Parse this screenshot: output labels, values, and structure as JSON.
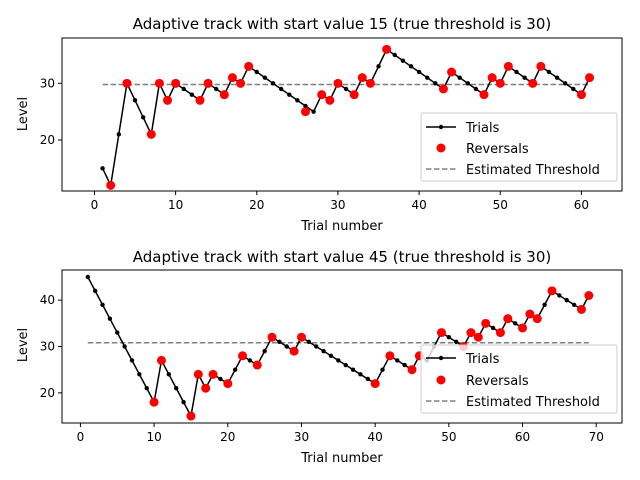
{
  "chart_data": [
    {
      "type": "line",
      "title": "Adaptive track with start value 15 (true threshold is 30)",
      "xlabel": "Trial number",
      "ylabel": "Level",
      "xlim": [
        -4.0,
        65.0
      ],
      "ylim": [
        11.0,
        38.0
      ],
      "xticks": [
        0,
        10,
        20,
        30,
        40,
        50,
        60
      ],
      "yticks": [
        20,
        30
      ],
      "grid": false,
      "legend_position": "lower right",
      "threshold": 29.8,
      "threshold_x": [
        1,
        61
      ],
      "colors": {
        "trials": "#000000",
        "reversals": "#ff0000",
        "threshold": "#808080"
      },
      "series": [
        {
          "name": "Trials",
          "x": [
            1,
            2,
            3,
            4,
            5,
            6,
            7,
            8,
            9,
            10,
            11,
            12,
            13,
            14,
            15,
            16,
            17,
            18,
            19,
            20,
            21,
            22,
            23,
            24,
            25,
            26,
            27,
            28,
            29,
            30,
            31,
            32,
            33,
            34,
            35,
            36,
            37,
            38,
            39,
            40,
            41,
            42,
            43,
            44,
            45,
            46,
            47,
            48,
            49,
            50,
            51,
            52,
            53,
            54,
            55,
            56,
            57,
            58,
            59,
            60,
            61
          ],
          "y": [
            15,
            12,
            21,
            30,
            27,
            24,
            21,
            30,
            27,
            30,
            29,
            28,
            27,
            30,
            29,
            28,
            31,
            30,
            33,
            32,
            31,
            30,
            29,
            28,
            27,
            26,
            25,
            28,
            27,
            30,
            29,
            28,
            31,
            30,
            33,
            36,
            35,
            34,
            33,
            32,
            31,
            30,
            29,
            32,
            31,
            30,
            29,
            28,
            31,
            30,
            33,
            32,
            31,
            30,
            33,
            32,
            31,
            30,
            29,
            28,
            31
          ]
        },
        {
          "name": "Reversals",
          "x": [
            2,
            4,
            7,
            8,
            9,
            10,
            13,
            14,
            16,
            17,
            18,
            19,
            26,
            28,
            29,
            30,
            32,
            33,
            34,
            36,
            43,
            44,
            48,
            49,
            50,
            51,
            54,
            55,
            60,
            61
          ],
          "y": [
            12,
            30,
            21,
            30,
            27,
            30,
            27,
            30,
            28,
            31,
            30,
            33,
            25,
            28,
            27,
            30,
            28,
            31,
            30,
            36,
            29,
            32,
            28,
            31,
            30,
            33,
            30,
            33,
            28,
            31
          ]
        },
        {
          "name": "Estimated Threshold",
          "x": [
            1,
            61
          ],
          "y": [
            29.8,
            29.8
          ]
        }
      ]
    },
    {
      "type": "line",
      "title": "Adaptive track with start value 45 (true threshold is 30)",
      "xlabel": "Trial number",
      "ylabel": "Level",
      "xlim": [
        -2.5,
        73.5
      ],
      "ylim": [
        13.5,
        46.5
      ],
      "xticks": [
        0,
        10,
        20,
        30,
        40,
        50,
        60,
        70
      ],
      "yticks": [
        20,
        30,
        40
      ],
      "grid": false,
      "legend_position": "lower right",
      "threshold": 30.8,
      "threshold_x": [
        1,
        69
      ],
      "colors": {
        "trials": "#000000",
        "reversals": "#ff0000",
        "threshold": "#808080"
      },
      "series": [
        {
          "name": "Trials",
          "x": [
            1,
            2,
            3,
            4,
            5,
            6,
            7,
            8,
            9,
            10,
            11,
            12,
            13,
            14,
            15,
            16,
            17,
            18,
            19,
            20,
            21,
            22,
            23,
            24,
            25,
            26,
            27,
            28,
            29,
            30,
            31,
            32,
            33,
            34,
            35,
            36,
            37,
            38,
            39,
            40,
            41,
            42,
            43,
            44,
            45,
            46,
            47,
            48,
            49,
            50,
            51,
            52,
            53,
            54,
            55,
            56,
            57,
            58,
            59,
            60,
            61,
            62,
            63,
            64,
            65,
            66,
            67,
            68,
            69
          ],
          "y": [
            45,
            42,
            39,
            36,
            33,
            30,
            27,
            24,
            21,
            18,
            27,
            24,
            21,
            18,
            15,
            24,
            21,
            24,
            23,
            22,
            25,
            28,
            27,
            26,
            29,
            32,
            31,
            30,
            29,
            32,
            31,
            30,
            29,
            28,
            27,
            26,
            25,
            24,
            23,
            22,
            25,
            28,
            27,
            26,
            25,
            28,
            27,
            30,
            33,
            32,
            31,
            30,
            33,
            32,
            35,
            34,
            33,
            36,
            35,
            34,
            37,
            36,
            39,
            42,
            41,
            40,
            39,
            38,
            41
          ]
        },
        {
          "name": "Reversals",
          "x": [
            10,
            11,
            15,
            16,
            17,
            18,
            20,
            22,
            24,
            26,
            29,
            30,
            40,
            42,
            45,
            46,
            49,
            52,
            53,
            54,
            55,
            57,
            58,
            60,
            61,
            62,
            64,
            68,
            69
          ],
          "y": [
            18,
            27,
            15,
            24,
            21,
            24,
            22,
            28,
            26,
            32,
            29,
            32,
            22,
            28,
            25,
            28,
            33,
            30,
            33,
            32,
            35,
            33,
            36,
            34,
            37,
            36,
            42,
            38,
            41
          ]
        },
        {
          "name": "Estimated Threshold",
          "x": [
            1,
            69
          ],
          "y": [
            30.8,
            30.8
          ]
        }
      ]
    }
  ]
}
